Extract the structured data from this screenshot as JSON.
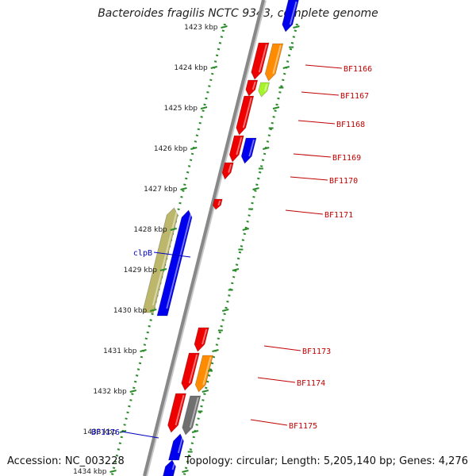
{
  "title": "Bacteroides fragilis NCTC 9343, complete genome",
  "footer": {
    "accession": "Accession: NC_003228",
    "summary": "Topology: circular; Length: 5,205,140 bp; Genes: 4,276"
  },
  "colors": {
    "ruler": "#2a8a2a",
    "backbone": "#888888",
    "label_right": "#c00000",
    "label_left": "#0000c0",
    "red": "#ee0000",
    "orange": "#ff8c00",
    "lime": "#a6f22d",
    "blue": "#0000ee",
    "khaki": "#bdb76b",
    "gray": "#707070"
  },
  "ruler_ticks": [
    "1423 kbp",
    "1424 kbp",
    "1425 kbp",
    "1426 kbp",
    "1427 kbp",
    "1428 kbp",
    "1429 kbp",
    "1430 kbp",
    "1431 kbp",
    "1432 kbp",
    "1433 kbp",
    "1434 kbp"
  ],
  "gene_labels": [
    {
      "text": "BF1166",
      "side": "right"
    },
    {
      "text": "BF1167",
      "side": "right"
    },
    {
      "text": "BF1168",
      "side": "right"
    },
    {
      "text": "BF1169",
      "side": "right"
    },
    {
      "text": "BF1170",
      "side": "right"
    },
    {
      "text": "BF1171",
      "side": "right"
    },
    {
      "text": "BF1173",
      "side": "right"
    },
    {
      "text": "BF1174",
      "side": "right"
    },
    {
      "text": "BF1175",
      "side": "right"
    },
    {
      "text": "clpB",
      "side": "left"
    },
    {
      "text": "BF1176",
      "side": "left"
    }
  ],
  "genes": [
    {
      "strand": "+",
      "color": "red"
    },
    {
      "strand": "+",
      "color": "orange"
    },
    {
      "strand": "+",
      "color": "red"
    },
    {
      "strand": "+",
      "color": "lime"
    },
    {
      "strand": "+",
      "color": "red"
    },
    {
      "strand": "+",
      "color": "red"
    },
    {
      "strand": "+",
      "color": "blue"
    },
    {
      "strand": "+",
      "color": "red"
    },
    {
      "strand": "+",
      "color": "red"
    },
    {
      "strand": "-",
      "color": "khaki"
    },
    {
      "strand": "-",
      "color": "blue"
    },
    {
      "strand": "+",
      "color": "red"
    },
    {
      "strand": "+",
      "color": "red"
    },
    {
      "strand": "+",
      "color": "orange"
    },
    {
      "strand": "+",
      "color": "red"
    },
    {
      "strand": "+",
      "color": "gray"
    },
    {
      "strand": "-",
      "color": "blue"
    },
    {
      "strand": "-",
      "color": "blue"
    },
    {
      "strand": "+",
      "color": "blue"
    }
  ]
}
